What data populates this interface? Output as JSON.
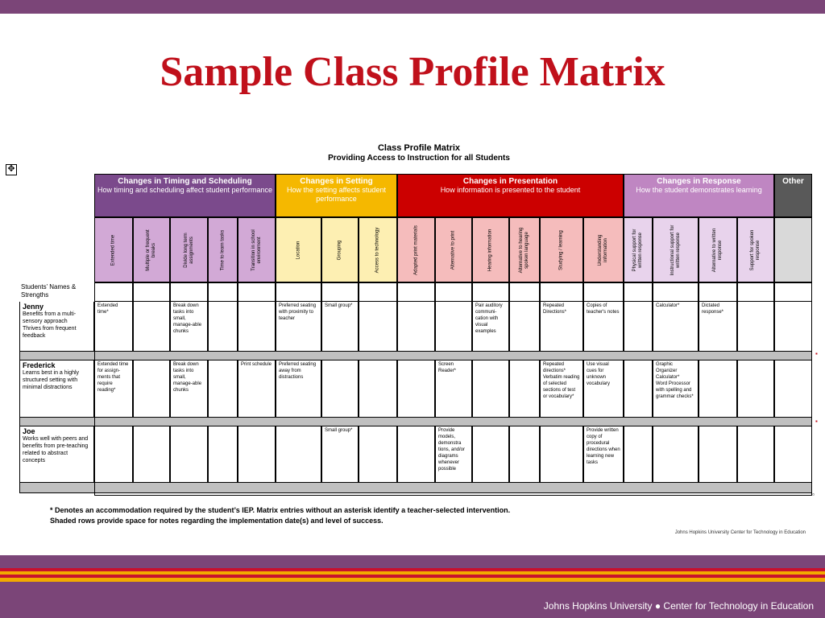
{
  "slide": {
    "title": "Sample Class Profile Matrix",
    "footer": "Johns Hopkins University ● Center for Technology in Education",
    "colors": {
      "purple": "#7b4578",
      "title_red": "#c0101b",
      "red_band": "#c8102e",
      "gold_band": "#f2a900"
    }
  },
  "matrix": {
    "title": "Class Profile Matrix",
    "subtitle": "Providing Access to Instruction for all Students",
    "names_label": "Students’ Names & Strengths",
    "groups": [
      {
        "title": "Changes in Timing and Scheduling",
        "desc": "How timing and scheduling affect student performance",
        "header_color": "#7b4a8c",
        "sub_color": "#d2a9d6"
      },
      {
        "title": "Changes in Setting",
        "desc": "How the setting affects student performance",
        "header_color": "#f5b800",
        "sub_color": "#fdefb2"
      },
      {
        "title": "Changes in Presentation",
        "desc": "How information is presented to the student",
        "header_color": "#cc0000",
        "sub_color": "#f5bcbc"
      },
      {
        "title": "Changes in Response",
        "desc": "How the student demonstrates learning",
        "header_color": "#bf86c2",
        "sub_color": "#e8d3ec"
      },
      {
        "title": "Other",
        "desc": "",
        "header_color": "#595959",
        "sub_color": "#d9d9d9"
      }
    ],
    "columns": [
      "Extended time",
      "Multiple or frequent breaks",
      "Divide long term assignments",
      "Time to learn tasks",
      "Transition in school environment",
      "Location",
      "Grouping",
      "Access to technology",
      "Adapted print materials",
      "Alternative to print",
      "Hearing information",
      "Alternative to hearing spoken language",
      "Studying / learning",
      "Understanding information",
      "Physical support for written response",
      "Instructional support for written response",
      "Alternative to written response",
      "Support for spoken response",
      ""
    ],
    "students": [
      {
        "name": "Jenny",
        "desc": "Benefits from a multi-sensory approach\nThrives from frequent feedback",
        "entries": [
          "Extended time*",
          "",
          "Break down tasks into small, manage-able chunks",
          "",
          "",
          "Preferred seating with proximity to teacher",
          "Small group*",
          "",
          "",
          "",
          "Pair auditory communi-cation with visual examples",
          "",
          "Repeated Directions*",
          "Copies of teacher's notes",
          "",
          "Calculator*",
          "Dictated response*",
          "",
          ""
        ]
      },
      {
        "name": "Frederick",
        "desc": "Learns best in a highly structured setting with minimal distractions",
        "entries": [
          "Extended time for assign-ments that require reading*",
          "",
          "Break down tasks into small, manage-able chunks",
          "",
          "Print schedule",
          "Preferred seating away from distractions",
          "",
          "",
          "",
          "Screen Reader*",
          "",
          "",
          "Repeated directions*\nVerbatim reading of selected sections of test or vocabulary*",
          "Use visual cues for unknown vocabulary",
          "",
          "Graphic Organizer\nCalculator*\nWord Processor with spelling and grammar checks*",
          "",
          "",
          ""
        ]
      },
      {
        "name": "Joe",
        "desc": "Works well with peers and benefits from pre-teaching related to abstract concepts",
        "entries": [
          "",
          "",
          "",
          "",
          "",
          "",
          "Small group*",
          "",
          "",
          "Provide models, demonstra tions, and/or diagrams whenever possible",
          "",
          "",
          "",
          "Provide written copy of procedural directions when learning new tasks",
          "",
          "",
          "",
          "",
          ""
        ]
      }
    ],
    "footnote_1": "* Denotes an accommodation required by the student’s IEP.  Matrix entries without an asterisk identify a teacher-selected intervention.",
    "footnote_2": "Shaded rows provide space for notes regarding the implementation date(s) and level of success.",
    "credit": "Johns Hopkins University Center for Technology in Education"
  }
}
